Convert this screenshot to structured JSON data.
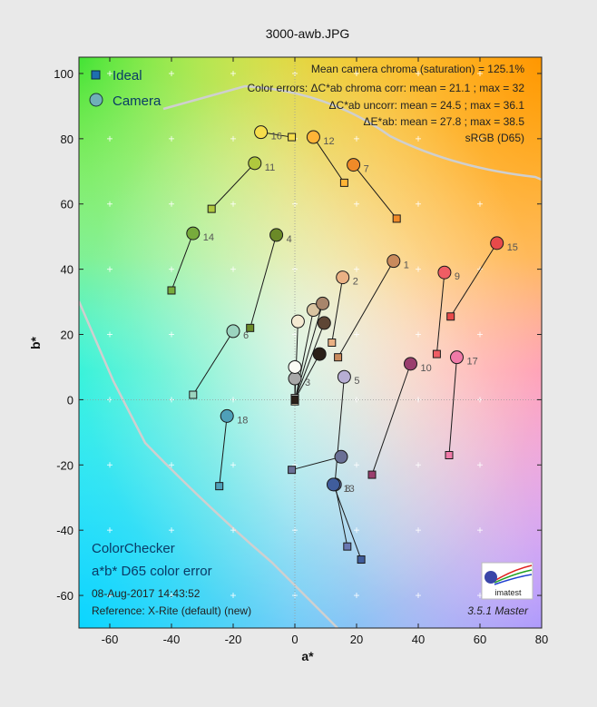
{
  "chart_data": {
    "type": "scatter",
    "title": "3000-awb.JPG",
    "xlabel": "a*",
    "ylabel": "b*",
    "xlim": [
      -70,
      80
    ],
    "ylim": [
      -70,
      105
    ],
    "xticks": [
      "-60",
      "-40",
      "-20",
      "0",
      "20",
      "40",
      "60",
      "80"
    ],
    "yticks": [
      "-60",
      "-40",
      "-20",
      "0",
      "20",
      "40",
      "60",
      "80",
      "100"
    ],
    "grid": true,
    "legend_position": "top-left",
    "legend": [
      {
        "name": "Ideal",
        "marker": "square",
        "color": "#1e6fb0"
      },
      {
        "name": "Camera",
        "marker": "circle",
        "color": "#6fb0b8"
      }
    ],
    "stats": [
      "Mean camera chroma (saturation) = 125.1%",
      "Color errors: ΔC*ab chroma corr:  mean = 21.1 ;  max = 32",
      "ΔC*ab uncorr:  mean = 24.5 ;  max = 36.1",
      "ΔE*ab:  mean = 27.8 ;  max = 38.5",
      "sRGB (D65)"
    ],
    "info": {
      "target": "ColorChecker",
      "subtitle": "a*b* D65 color error",
      "date": "08-Aug-2017 14:43:52",
      "reference": "Reference: X-Rite (default) (new)",
      "version": "3.5.1  Master",
      "logo": "imatest"
    },
    "patches": [
      {
        "id": "1",
        "ideal": [
          14,
          13
        ],
        "camera": [
          32,
          42.5
        ],
        "color": "#c98a5c"
      },
      {
        "id": "2",
        "ideal": [
          12,
          17.5
        ],
        "camera": [
          15.5,
          37.5
        ],
        "color": "#eab184"
      },
      {
        "id": "3",
        "ideal": [
          0,
          0
        ],
        "camera": [
          0,
          6.5
        ],
        "color": "#a8a8a8"
      },
      {
        "id": "4",
        "ideal": [
          -14.5,
          22
        ],
        "camera": [
          -6,
          50.5
        ],
        "color": "#6b8a28"
      },
      {
        "id": "5",
        "ideal": [
          13,
          -25.5
        ],
        "camera": [
          16,
          7
        ],
        "color": "#b7aed3"
      },
      {
        "id": "6",
        "ideal": [
          -33,
          1.5
        ],
        "camera": [
          -20,
          21
        ],
        "color": "#9bd4bf"
      },
      {
        "id": "7",
        "ideal": [
          33,
          55.5
        ],
        "camera": [
          19,
          72
        ],
        "color": "#f08a28"
      },
      {
        "id": "8",
        "ideal": [
          17,
          -45
        ],
        "camera": [
          13,
          -26
        ],
        "color": "#6a78b3"
      },
      {
        "id": "9",
        "ideal": [
          46,
          14
        ],
        "camera": [
          48.5,
          39
        ],
        "color": "#ef5d64"
      },
      {
        "id": "10",
        "ideal": [
          25,
          -23
        ],
        "camera": [
          37.5,
          11
        ],
        "color": "#9a3e6e"
      },
      {
        "id": "11",
        "ideal": [
          -27,
          58.5
        ],
        "camera": [
          -13,
          72.5
        ],
        "color": "#b0c83e"
      },
      {
        "id": "12",
        "ideal": [
          16,
          66.5
        ],
        "camera": [
          6,
          80.5
        ],
        "color": "#ffb437"
      },
      {
        "id": "13",
        "ideal": [
          21.5,
          -49
        ],
        "camera": [
          12.5,
          -26
        ],
        "color": "#405d9c"
      },
      {
        "id": "14",
        "ideal": [
          -40,
          33.5
        ],
        "camera": [
          -33,
          51
        ],
        "color": "#77ab3c"
      },
      {
        "id": "15",
        "ideal": [
          50.5,
          25.5
        ],
        "camera": [
          65.5,
          48
        ],
        "color": "#e84a4a"
      },
      {
        "id": "16",
        "ideal": [
          -1,
          80.5
        ],
        "camera": [
          -11,
          82
        ],
        "color": "#f6de4c"
      },
      {
        "id": "17",
        "ideal": [
          50,
          -17
        ],
        "camera": [
          52.5,
          13
        ],
        "color": "#f07aa8"
      },
      {
        "id": "18",
        "ideal": [
          -24.5,
          -26.5
        ],
        "camera": [
          -22,
          -5
        ],
        "color": "#4fa0b9"
      },
      {
        "id": "",
        "ideal": [
          0,
          0.5
        ],
        "camera": [
          0,
          10
        ],
        "color": "#fbfbf5"
      },
      {
        "id": "",
        "ideal": [
          0,
          0
        ],
        "camera": [
          1,
          24
        ],
        "color": "#f4ead2"
      },
      {
        "id": "",
        "ideal": [
          0,
          -0.5
        ],
        "camera": [
          6,
          27.5
        ],
        "color": "#d9c4a1"
      },
      {
        "id": "",
        "ideal": [
          0,
          0
        ],
        "camera": [
          9,
          29.5
        ],
        "color": "#a8856b"
      },
      {
        "id": "",
        "ideal": [
          0,
          0
        ],
        "camera": [
          9.5,
          23.5
        ],
        "color": "#5e4635"
      },
      {
        "id": "",
        "ideal": [
          0,
          0
        ],
        "camera": [
          8,
          14
        ],
        "color": "#2b2018"
      },
      {
        "id": "",
        "ideal": [
          -1,
          -21.5
        ],
        "camera": [
          15,
          -17.5
        ],
        "color": "#6a7096"
      }
    ]
  }
}
